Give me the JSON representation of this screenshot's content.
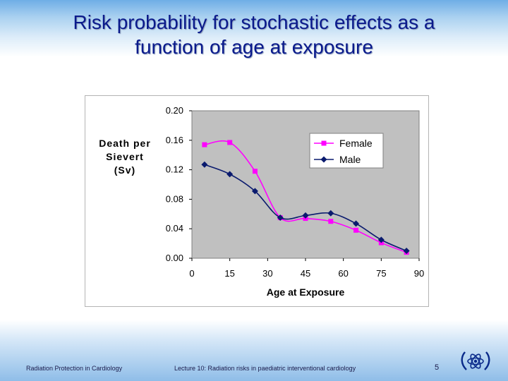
{
  "slide": {
    "title_line1": "Risk probability for stochastic effects as a",
    "title_line2": "function of age at exposure",
    "footer_left": "Radiation Protection in Cardiology",
    "footer_center": "Lecture 10: Radiation risks in paediatric interventional cardiology",
    "page_number": "5"
  },
  "chart_data": {
    "type": "line",
    "title": "",
    "xlabel": "Age at Exposure",
    "ylabel": [
      "Death per",
      "Sievert",
      "(Sv)"
    ],
    "xlim": [
      0,
      90
    ],
    "ylim": [
      0,
      0.2
    ],
    "xticks": [
      "0",
      "15",
      "30",
      "45",
      "60",
      "75",
      "90"
    ],
    "yticks": [
      "0.00",
      "0.04",
      "0.08",
      "0.12",
      "0.16",
      "0.20"
    ],
    "x": [
      5,
      15,
      25,
      35,
      45,
      55,
      65,
      75,
      85
    ],
    "legend_position": "top-right",
    "series": [
      {
        "name": "Female",
        "color": "#ff00ff",
        "marker": "square",
        "values": [
          0.154,
          0.157,
          0.118,
          0.055,
          0.054,
          0.05,
          0.038,
          0.021,
          0.008
        ]
      },
      {
        "name": "Male",
        "color": "#0a1a6e",
        "marker": "diamond",
        "values": [
          0.127,
          0.114,
          0.091,
          0.055,
          0.058,
          0.061,
          0.047,
          0.025,
          0.01
        ]
      }
    ]
  }
}
